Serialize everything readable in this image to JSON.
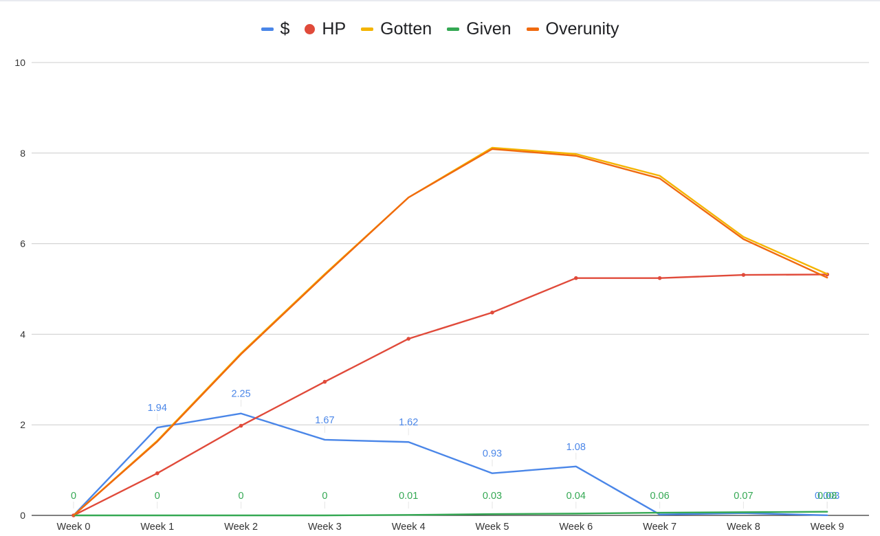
{
  "chart_data": {
    "type": "line",
    "title": "",
    "xlabel": "",
    "ylabel": "",
    "categories": [
      "Week 0",
      "Week 1",
      "Week 2",
      "Week 3",
      "Week 4",
      "Week 5",
      "Week 6",
      "Week 7",
      "Week 8",
      "Week 9"
    ],
    "ylim": [
      0,
      10
    ],
    "yticks": [
      "0",
      "2",
      "4",
      "6",
      "8",
      "10"
    ],
    "grid": true,
    "legend_position": "top-center",
    "series": [
      {
        "name": "$",
        "color": "#4a86e8",
        "marker": "line",
        "values": [
          0,
          1.94,
          2.25,
          1.67,
          1.62,
          0.93,
          1.08,
          0.02,
          0.05,
          0.003
        ],
        "labels": [
          "",
          "1.94",
          "2.25",
          "1.67",
          "1.62",
          "0.93",
          "1.08",
          "",
          "",
          "0.003"
        ]
      },
      {
        "name": "HP",
        "color": "#e04a3a",
        "marker": "dot",
        "values": [
          0,
          0.93,
          1.98,
          2.95,
          3.9,
          4.48,
          5.24,
          5.24,
          5.31,
          5.32
        ]
      },
      {
        "name": "Gotten",
        "color": "#f4b400",
        "marker": "line",
        "values": [
          0,
          1.65,
          3.58,
          5.33,
          7.02,
          8.12,
          7.98,
          7.5,
          6.15,
          5.33
        ]
      },
      {
        "name": "Given",
        "color": "#34a853",
        "marker": "line",
        "values": [
          0,
          0,
          0,
          0,
          0.01,
          0.03,
          0.04,
          0.06,
          0.07,
          0.08
        ],
        "labels": [
          "0",
          "0",
          "0",
          "0",
          "0.01",
          "0.03",
          "0.04",
          "0.06",
          "0.07",
          "0.08"
        ]
      },
      {
        "name": "Overunity",
        "color": "#f06a0f",
        "marker": "line",
        "values": [
          0,
          1.63,
          3.56,
          5.31,
          7.02,
          8.09,
          7.94,
          7.44,
          6.1,
          5.25
        ]
      }
    ]
  }
}
